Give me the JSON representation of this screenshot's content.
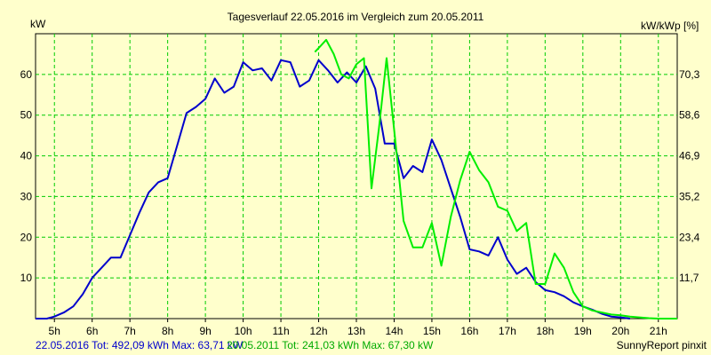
{
  "chart_data": {
    "type": "line",
    "title": "Tagesverlauf 22.05.2016 im Vergleich zum 20.05.2011",
    "left_unit": "kW",
    "right_unit": "kW/kWp [%]",
    "x_ticks": [
      "5h",
      "6h",
      "7h",
      "8h",
      "9h",
      "10h",
      "11h",
      "12h",
      "13h",
      "14h",
      "15h",
      "16h",
      "17h",
      "18h",
      "19h",
      "20h",
      "21h"
    ],
    "x_range": [
      4.5,
      21.5
    ],
    "ylim": [
      0,
      70
    ],
    "y_ticks_left": [
      "10",
      "20",
      "30",
      "40",
      "50",
      "60"
    ],
    "y_ticks_right": [
      "11,7",
      "23,4",
      "35,2",
      "46,9",
      "58,6",
      "70,3"
    ],
    "grid": true,
    "series": [
      {
        "name": "22.05.2016",
        "color": "#0000cc",
        "points": [
          [
            4.5,
            0
          ],
          [
            4.8,
            0
          ],
          [
            5.0,
            0.5
          ],
          [
            5.25,
            1.5
          ],
          [
            5.5,
            3
          ],
          [
            5.75,
            6
          ],
          [
            6.0,
            10
          ],
          [
            6.25,
            12.5
          ],
          [
            6.5,
            15
          ],
          [
            6.75,
            15
          ],
          [
            7.0,
            20.5
          ],
          [
            7.25,
            26
          ],
          [
            7.5,
            31
          ],
          [
            7.75,
            33.5
          ],
          [
            8.0,
            34.5
          ],
          [
            8.25,
            42.5
          ],
          [
            8.5,
            50.5
          ],
          [
            8.75,
            52
          ],
          [
            9.0,
            54
          ],
          [
            9.25,
            59
          ],
          [
            9.5,
            55.5
          ],
          [
            9.75,
            57
          ],
          [
            10.0,
            63
          ],
          [
            10.25,
            61
          ],
          [
            10.5,
            61.5
          ],
          [
            10.75,
            58.5
          ],
          [
            11.0,
            63.5
          ],
          [
            11.25,
            63
          ],
          [
            11.5,
            57
          ],
          [
            11.75,
            58.5
          ],
          [
            12.0,
            63.5
          ],
          [
            12.25,
            61
          ],
          [
            12.5,
            58
          ],
          [
            12.75,
            60.5
          ],
          [
            13.0,
            58
          ],
          [
            13.25,
            62
          ],
          [
            13.5,
            56.5
          ],
          [
            13.75,
            43
          ],
          [
            14.0,
            43
          ],
          [
            14.25,
            34.5
          ],
          [
            14.5,
            37.5
          ],
          [
            14.75,
            36
          ],
          [
            15.0,
            44
          ],
          [
            15.25,
            39
          ],
          [
            15.5,
            32
          ],
          [
            15.75,
            25
          ],
          [
            16.0,
            17
          ],
          [
            16.25,
            16.5
          ],
          [
            16.5,
            15.5
          ],
          [
            16.75,
            20
          ],
          [
            17.0,
            14.5
          ],
          [
            17.25,
            11
          ],
          [
            17.5,
            12.5
          ],
          [
            17.75,
            9
          ],
          [
            18.0,
            7
          ],
          [
            18.25,
            6.5
          ],
          [
            18.5,
            5.5
          ],
          [
            18.75,
            4
          ],
          [
            19.0,
            3
          ],
          [
            19.25,
            2.2
          ],
          [
            19.5,
            1.2
          ],
          [
            19.75,
            0.5
          ],
          [
            20.0,
            0.3
          ],
          [
            20.25,
            0
          ]
        ]
      },
      {
        "name": "20.05.2011",
        "color": "#00ee00",
        "points": [
          [
            11.9,
            65.5
          ],
          [
            12.05,
            67
          ],
          [
            12.2,
            68.5
          ],
          [
            12.4,
            65
          ],
          [
            12.6,
            60
          ],
          [
            12.8,
            59
          ],
          [
            13.0,
            62.5
          ],
          [
            13.2,
            64
          ],
          [
            13.4,
            32
          ],
          [
            13.6,
            47
          ],
          [
            13.8,
            64
          ],
          [
            14.05,
            42
          ],
          [
            14.25,
            24
          ],
          [
            14.5,
            17.5
          ],
          [
            14.75,
            17.5
          ],
          [
            15.0,
            23.5
          ],
          [
            15.25,
            13
          ],
          [
            15.5,
            25
          ],
          [
            15.75,
            34
          ],
          [
            16.0,
            41
          ],
          [
            16.25,
            36.5
          ],
          [
            16.5,
            33.5
          ],
          [
            16.75,
            27.5
          ],
          [
            17.0,
            26.5
          ],
          [
            17.25,
            21.5
          ],
          [
            17.5,
            23.5
          ],
          [
            17.75,
            8.5
          ],
          [
            18.0,
            8.5
          ],
          [
            18.25,
            16
          ],
          [
            18.5,
            12.5
          ],
          [
            18.75,
            6.5
          ],
          [
            19.0,
            3
          ],
          [
            19.25,
            2
          ],
          [
            19.5,
            1.5
          ],
          [
            19.75,
            1
          ],
          [
            20.0,
            0.8
          ],
          [
            20.25,
            0.5
          ],
          [
            20.5,
            0.3
          ],
          [
            20.75,
            0.1
          ],
          [
            21.0,
            0
          ],
          [
            21.5,
            0
          ]
        ]
      }
    ]
  },
  "footer": {
    "left_blue": "22.05.2016 Tot: 492,09 kWh Max: 63,71 kW",
    "left_green": "20.05.2011 Tot: 241,03 kWh Max: 67,30 kW",
    "right": "SunnyReport pinxit"
  }
}
